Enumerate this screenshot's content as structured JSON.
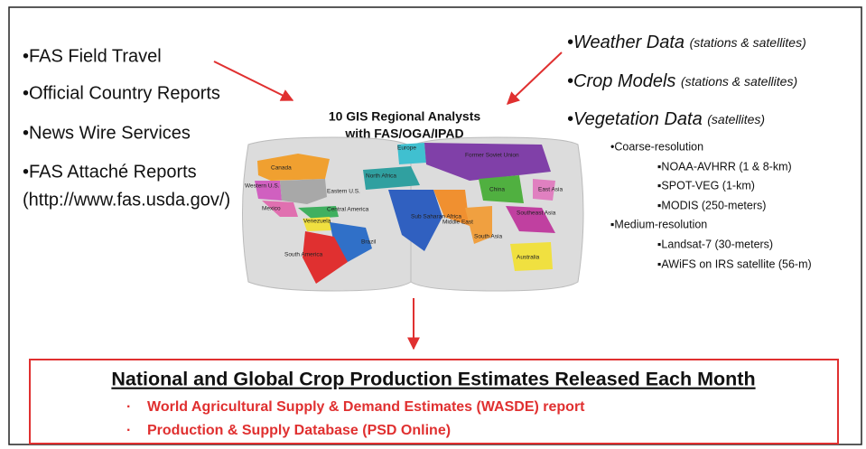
{
  "left_sources": [
    "•FAS Field Travel",
    "•Official Country Reports",
    "•News Wire Services",
    "•FAS Attaché Reports"
  ],
  "left_url": "(http://www.fas.usda.gov/)",
  "center": {
    "title": [
      "10 GIS Regional Analysts",
      "with FAS/OGA/IPAD"
    ]
  },
  "map_labels": [
    "Canada",
    "Western U.S.",
    "Eastern U.S.",
    "Mexico",
    "Central America",
    "Venezuela",
    "Brazil",
    "South America",
    "Europe",
    "North Africa",
    "Former Soviet Union",
    "China",
    "East Asia",
    "Sub Saharan Africa",
    "Middle East",
    "South Asia",
    "Southeast Asia",
    "Australia"
  ],
  "right_sources": [
    {
      "name": "•Weather Data",
      "note": "(stations & satellites)"
    },
    {
      "name": "•Crop Models",
      "note": "(stations & satellites)"
    },
    {
      "name": "•Vegetation Data",
      "note": "(satellites)"
    }
  ],
  "resolutions": [
    {
      "label": "•Coarse-resolution",
      "items": [
        "▪NOAA-AVHRR (1 & 8-km)",
        "▪SPOT-VEG (1-km)",
        "▪MODIS (250-meters)"
      ]
    },
    {
      "label": "▪Medium-resolution",
      "items": [
        "▪Landsat-7 (30-meters)",
        "▪AWiFS on IRS satellite (56-m)"
      ]
    }
  ],
  "output": {
    "title": "National and Global Crop Production Estimates Released Each Month",
    "items": [
      "World Agricultural Supply & Demand Estimates (WASDE) report",
      "Production & Supply Database (PSD Online)"
    ]
  }
}
